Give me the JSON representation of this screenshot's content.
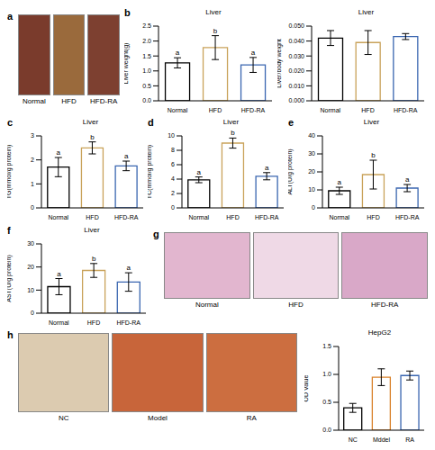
{
  "chart_data": [
    {
      "panel": "b",
      "type": "bar",
      "title": "Liver",
      "y_label": "Liver weight(g)",
      "categories": [
        "Normal",
        "HFD",
        "HFD-RA"
      ],
      "values": [
        1.27,
        1.78,
        1.2
      ],
      "errors": [
        0.17,
        0.4,
        0.25
      ],
      "annotations": [
        "a",
        "b",
        "a"
      ],
      "colors": [
        "#000000",
        "#c9a25a",
        "#3a66b0"
      ],
      "ylim": [
        0,
        2.5
      ],
      "yticks": [
        {
          "value": 0,
          "label": "0.0"
        },
        {
          "value": 0.5,
          "label": "0.5"
        },
        {
          "value": 1,
          "label": "1.0"
        },
        {
          "value": 1.5,
          "label": "1.5"
        },
        {
          "value": 2,
          "label": "2.0"
        },
        {
          "value": 2.5,
          "label": "2.5"
        }
      ],
      "grid": false
    },
    {
      "panel": "",
      "type": "bar",
      "title": "Liver",
      "y_label": "Liver/body weight",
      "categories": [
        "Normal",
        "HFD",
        "HFD-RA"
      ],
      "values": [
        0.042,
        0.039,
        0.043
      ],
      "errors": [
        0.005,
        0.008,
        0.002
      ],
      "colors": [
        "#000000",
        "#c9a25a",
        "#3a66b0"
      ],
      "ylim": [
        0,
        0.05
      ],
      "yticks": [
        {
          "value": 0,
          "label": "0.000"
        },
        {
          "value": 0.01,
          "label": "0.010"
        },
        {
          "value": 0.02,
          "label": "0.020"
        },
        {
          "value": 0.03,
          "label": "0.030"
        },
        {
          "value": 0.04,
          "label": "0.040"
        },
        {
          "value": 0.05,
          "label": "0.050"
        }
      ],
      "grid": false
    },
    {
      "panel": "c",
      "type": "bar",
      "title": "Liver",
      "y_label": "TG(mmol/g protein)",
      "categories": [
        "Normal",
        "HFD",
        "HFD-RA"
      ],
      "values": [
        1.7,
        2.5,
        1.75
      ],
      "errors": [
        0.4,
        0.25,
        0.2
      ],
      "annotations": [
        "a",
        "b",
        "a"
      ],
      "colors": [
        "#000000",
        "#c9a25a",
        "#3a66b0"
      ],
      "ylim": [
        0,
        3
      ],
      "yticks": [
        0,
        1,
        2,
        3
      ],
      "grid": false
    },
    {
      "panel": "d",
      "type": "bar",
      "title": "Liver",
      "y_label": "TC(mmol/g protein)",
      "categories": [
        "Normal",
        "HFD",
        "HFD-RA"
      ],
      "values": [
        3.9,
        9.0,
        4.4
      ],
      "errors": [
        0.4,
        0.7,
        0.5
      ],
      "annotations": [
        "a",
        "b",
        "a"
      ],
      "colors": [
        "#000000",
        "#c9a25a",
        "#3a66b0"
      ],
      "ylim": [
        0,
        10
      ],
      "yticks": [
        0,
        2,
        4,
        6,
        8,
        10
      ],
      "grid": false
    },
    {
      "panel": "e",
      "type": "bar",
      "title": "Liver",
      "y_label": "ALT(U/g protein)",
      "categories": [
        "Normal",
        "HFD",
        "HFD-RA"
      ],
      "values": [
        9.5,
        18.5,
        11
      ],
      "errors": [
        2,
        8,
        2
      ],
      "annotations": [
        "a",
        "b",
        "a"
      ],
      "colors": [
        "#000000",
        "#c9a25a",
        "#3a66b0"
      ],
      "ylim": [
        0,
        40
      ],
      "yticks": [
        0,
        10,
        20,
        30,
        40
      ],
      "grid": false
    },
    {
      "panel": "f",
      "type": "bar",
      "title": "Liver",
      "y_label": "AST(U/g protein)",
      "categories": [
        "Normal",
        "HFD",
        "HFD-RA"
      ],
      "values": [
        11.5,
        18.5,
        13.5
      ],
      "errors": [
        3.5,
        3,
        4
      ],
      "annotations": [
        "a",
        "b",
        "a"
      ],
      "colors": [
        "#000000",
        "#c9a25a",
        "#3a66b0"
      ],
      "ylim": [
        0,
        30
      ],
      "yticks": [
        0,
        10,
        20,
        30
      ],
      "grid": false
    },
    {
      "panel": "",
      "type": "bar",
      "title": "HepG2",
      "y_label": "OD Value",
      "categories": [
        "NC",
        "Mddel",
        "RA"
      ],
      "values": [
        0.4,
        0.95,
        0.98
      ],
      "errors": [
        0.08,
        0.15,
        0.08
      ],
      "colors": [
        "#000000",
        "#d9822b",
        "#3a66b0"
      ],
      "ylim": [
        0,
        1.5
      ],
      "yticks": [
        {
          "value": 0,
          "label": "0.0"
        },
        {
          "value": 0.5,
          "label": "0.5"
        },
        {
          "value": 1,
          "label": "1.0"
        },
        {
          "value": 1.5,
          "label": "1.5"
        }
      ],
      "grid": false
    }
  ],
  "images": [
    {
      "panel": "a",
      "labels": [
        "Normal",
        "HFD",
        "HFD-RA"
      ]
    },
    {
      "panel": "g",
      "labels": [
        "Normal",
        "HFD",
        "HFD-RA"
      ]
    },
    {
      "panel": "h",
      "labels": [
        "NC",
        "Model",
        "RA"
      ]
    }
  ]
}
